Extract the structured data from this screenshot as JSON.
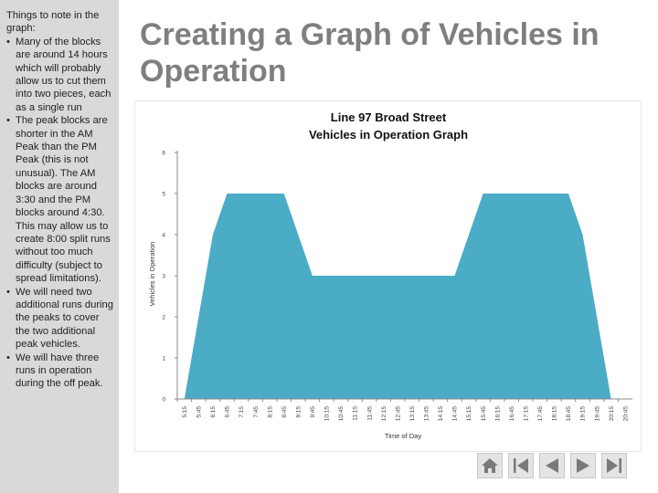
{
  "sidebar": {
    "intro": "Things to note in the graph:",
    "bullets": [
      "Many of the blocks are around 14 hours which will probably allow us to cut them into two pieces, each as a single run",
      "The peak blocks are shorter in the AM Peak than the PM Peak (this is not unusual). The AM blocks are around 3:30 and the PM blocks around 4:30. This may allow us to create 8:00 split runs without too much difficulty (subject to spread limitations).",
      "We will need two additional runs during the peaks to cover the two additional peak vehicles.",
      "We will have three runs in operation during the off peak."
    ]
  },
  "slide": {
    "title": "Creating a Graph of Vehicles in Operation"
  },
  "colors": {
    "area": "#4bacc6",
    "title_text": "#7f7f7f",
    "sidebar_bg": "#d9d9d9"
  },
  "nav": {
    "icons": [
      "home-icon",
      "first-slide-icon",
      "previous-slide-icon",
      "next-slide-icon",
      "last-slide-icon"
    ]
  },
  "chart_data": {
    "type": "area",
    "title_line1": "Line 97 Broad Street",
    "title_line2": "Vehicles in Operation Graph",
    "xlabel": "Time of Day",
    "ylabel": "Vehicles in Operation",
    "ylim": [
      0,
      6
    ],
    "yticks": [
      "0",
      "1",
      "2",
      "3",
      "4",
      "5",
      "6"
    ],
    "categories": [
      "5:15",
      "5:45",
      "6:15",
      "6:45",
      "7:15",
      "7:45",
      "8:15",
      "8:45",
      "9:15",
      "9:45",
      "10:15",
      "10:45",
      "11:15",
      "11:45",
      "12:15",
      "12:45",
      "13:15",
      "13:45",
      "14:15",
      "14:45",
      "15:15",
      "15:45",
      "16:15",
      "16:45",
      "17:15",
      "17:45",
      "18:15",
      "18:45",
      "19:15",
      "19:45",
      "20:15",
      "20:45"
    ],
    "series": [
      {
        "values": [
          0,
          2,
          4,
          5,
          5,
          5,
          5,
          5,
          4,
          3,
          3,
          3,
          3,
          3,
          3,
          3,
          3,
          3,
          3,
          3,
          4,
          5,
          5,
          5,
          5,
          5,
          5,
          5,
          4,
          2,
          0,
          0
        ]
      }
    ],
    "grid": false,
    "legend": "none"
  }
}
